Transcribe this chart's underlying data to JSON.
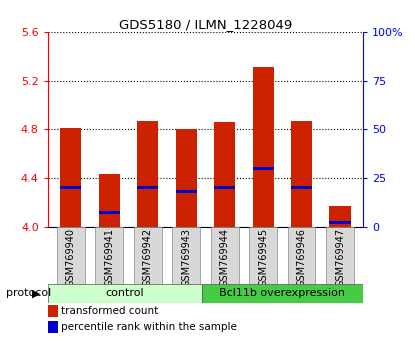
{
  "title": "GDS5180 / ILMN_1228049",
  "samples": [
    "GSM769940",
    "GSM769941",
    "GSM769942",
    "GSM769943",
    "GSM769944",
    "GSM769945",
    "GSM769946",
    "GSM769947"
  ],
  "transformed_counts": [
    4.81,
    4.43,
    4.87,
    4.8,
    4.86,
    5.31,
    4.87,
    4.17
  ],
  "percentile_ranks": [
    20,
    7,
    20,
    18,
    20,
    30,
    20,
    2
  ],
  "ymin": 4.0,
  "ymax": 5.6,
  "yticks": [
    4.0,
    4.4,
    4.8,
    5.2,
    5.6
  ],
  "right_yticks": [
    0,
    25,
    50,
    75,
    100
  ],
  "bar_color": "#cc2200",
  "percentile_color": "#0000cc",
  "bg_color": "#d8d8d8",
  "plot_bg": "#ffffff",
  "control_color": "#ccffcc",
  "overexp_color": "#44cc44",
  "control_label": "control",
  "overexp_label": "Bcl11b overexpression",
  "protocol_label": "protocol",
  "legend1": "transformed count",
  "legend2": "percentile rank within the sample",
  "control_samples": 4,
  "overexp_samples": 4,
  "bar_width": 0.55
}
